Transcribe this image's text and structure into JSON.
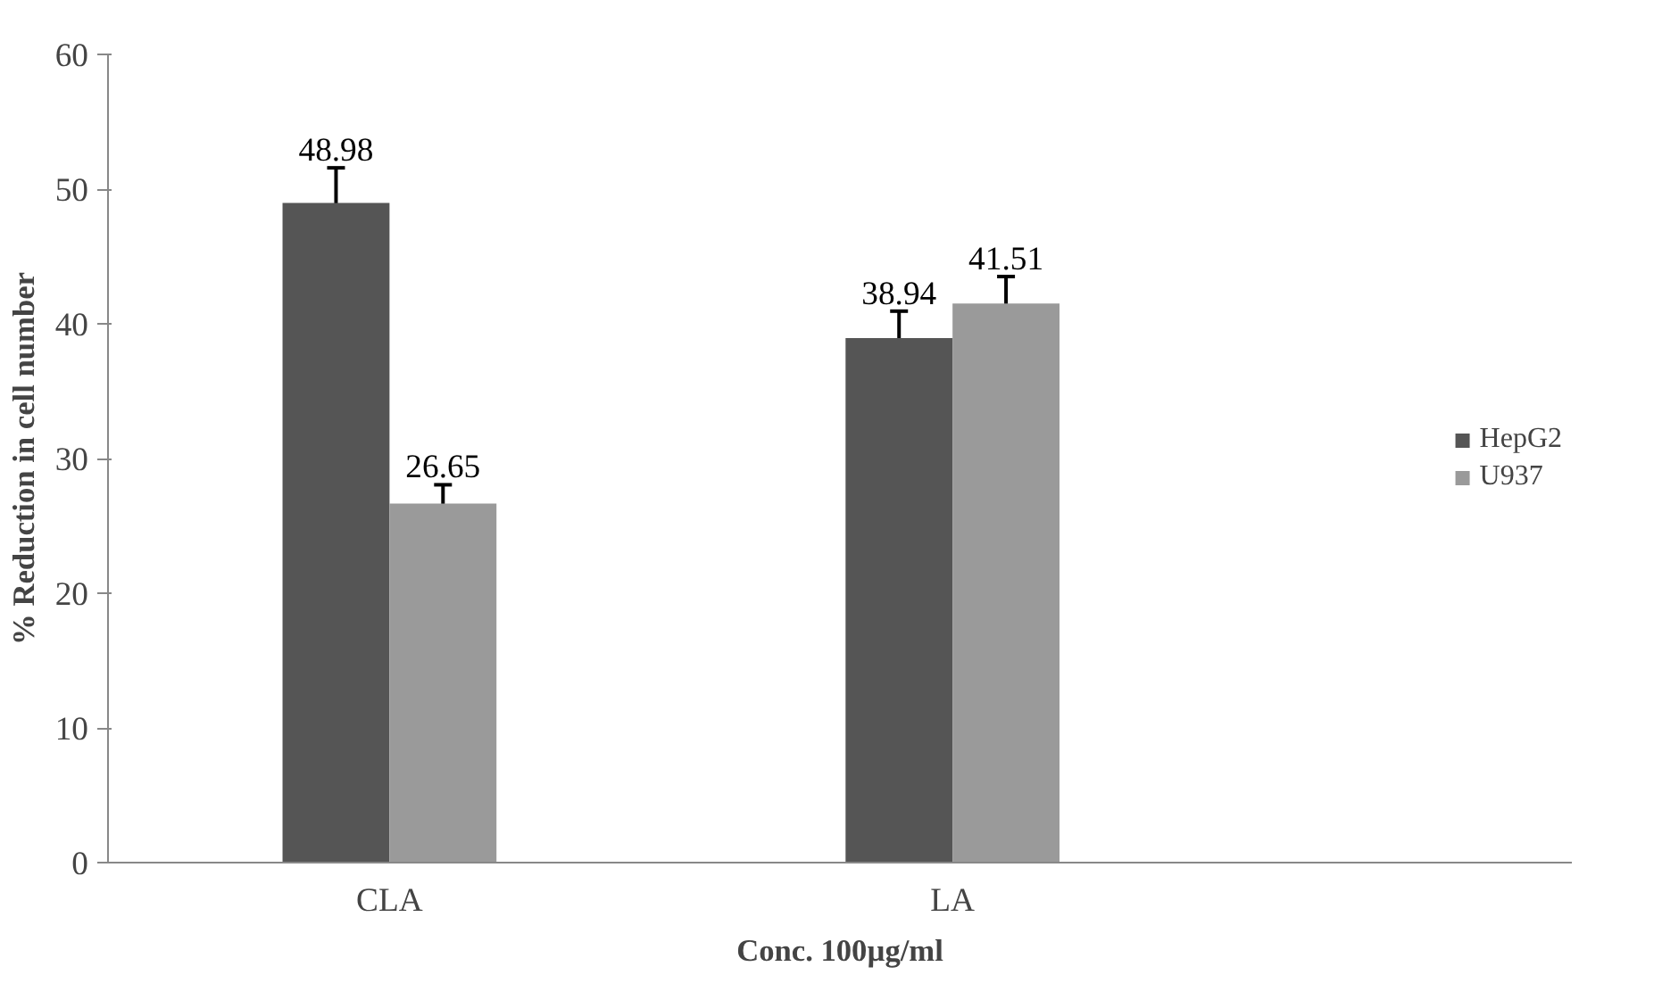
{
  "chart_data": {
    "type": "bar",
    "xlabel": "Conc. 100µg/ml",
    "ylabel": "% Reduction in cell number",
    "categories": [
      "CLA",
      "LA"
    ],
    "series": [
      {
        "name": "HepG2",
        "color": "#555555",
        "values": [
          48.98,
          38.94
        ],
        "errors": [
          2.6,
          2.0
        ]
      },
      {
        "name": "U937",
        "color": "#9a9a9a",
        "values": [
          26.65,
          41.51
        ],
        "errors": [
          1.4,
          2.0
        ]
      }
    ],
    "ylim": [
      0,
      60
    ],
    "yticks": [
      0,
      10,
      20,
      30,
      40,
      50,
      60
    ],
    "data_labels": true,
    "grid": false,
    "legend": "right"
  }
}
